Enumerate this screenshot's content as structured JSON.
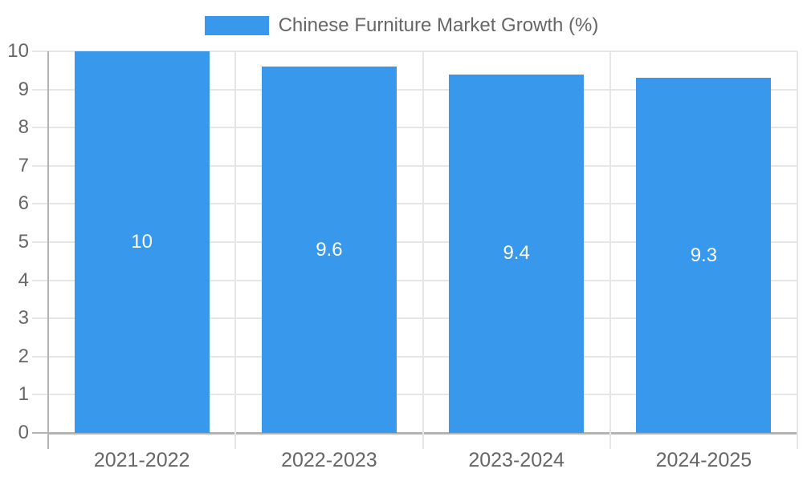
{
  "chart_data": {
    "type": "bar",
    "title": "Chinese Furniture Market Growth (%)",
    "series_name": "Chinese Furniture Market Growth (%)",
    "categories": [
      "2021-2022",
      "2022-2023",
      "2023-2024",
      "2024-2025"
    ],
    "values": [
      10,
      9.6,
      9.4,
      9.3
    ],
    "value_labels": [
      "10",
      "9.6",
      "9.4",
      "9.3"
    ],
    "xlabel": "",
    "ylabel": "",
    "ylim": [
      0,
      10
    ],
    "yticks": [
      0,
      1,
      2,
      3,
      4,
      5,
      6,
      7,
      8,
      9,
      10
    ],
    "grid": true,
    "legend_position": "top",
    "bar_percentage_of_category": 0.72,
    "colors": {
      "bar": "#3899ec",
      "grid_line": "#e6e6e6",
      "axis_line": "#b3b3b3",
      "tick_label": "#666666",
      "value_label": "#ffffff",
      "legend_text": "#666666"
    }
  }
}
